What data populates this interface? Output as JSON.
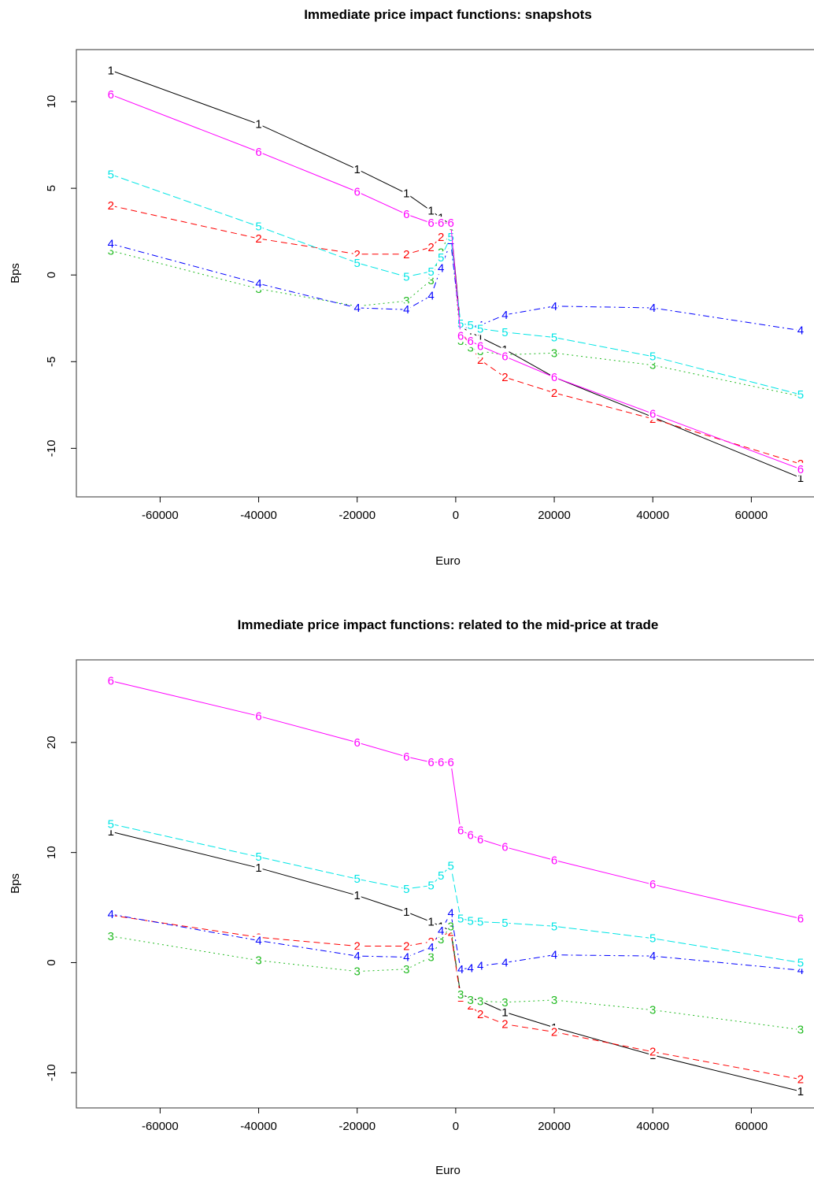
{
  "chart_data": [
    {
      "type": "line",
      "title": "Immediate price impact functions: snapshots",
      "xlabel": "Euro",
      "ylabel": "Bps",
      "xlim": [
        -77000,
        74000
      ],
      "ylim": [
        -12.8,
        13.0
      ],
      "x_ticks": [
        -60000,
        -40000,
        -20000,
        0,
        20000,
        40000,
        60000
      ],
      "x_tick_labels": [
        "-60000",
        "-40000",
        "-20000",
        "0",
        "20000",
        "40000",
        "60000"
      ],
      "y_ticks": [
        -10,
        -5,
        0,
        5,
        10
      ],
      "y_tick_labels": [
        "-10",
        "-5",
        "0",
        "5",
        "10"
      ],
      "grid": false,
      "x": [
        -70000,
        -40000,
        -20000,
        -10000,
        -5000,
        -3000,
        -1000,
        1000,
        3000,
        5000,
        10000,
        20000,
        40000,
        70000
      ],
      "series": [
        {
          "label": "1",
          "color": "#000000",
          "dash": "",
          "values": [
            11.8,
            8.7,
            6.1,
            4.7,
            3.7,
            3.3,
            2.9,
            -3.0,
            -3.3,
            -3.6,
            -4.3,
            -5.9,
            -8.2,
            -11.7
          ]
        },
        {
          "label": "2",
          "color": "#ff0000",
          "dash": "8,5",
          "values": [
            4.0,
            2.1,
            1.2,
            1.2,
            1.6,
            2.2,
            2.6,
            -3.2,
            -4.1,
            -4.9,
            -5.9,
            -6.8,
            -8.3,
            -10.9
          ]
        },
        {
          "label": "3",
          "color": "#22bb22",
          "dash": "2,4",
          "values": [
            1.4,
            -0.8,
            -1.8,
            -1.5,
            -0.3,
            1.3,
            2.6,
            -3.8,
            -4.2,
            -4.4,
            -4.6,
            -4.5,
            -5.2,
            -7.0
          ]
        },
        {
          "label": "4",
          "color": "#0000ff",
          "dash": "8,4,2,4",
          "values": [
            1.8,
            -0.5,
            -1.9,
            -2.0,
            -1.2,
            0.4,
            1.9,
            -3.1,
            -3.0,
            -2.9,
            -2.3,
            -1.8,
            -1.9,
            -3.2
          ]
        },
        {
          "label": "5",
          "color": "#00e5e5",
          "dash": "10,4",
          "values": [
            5.8,
            2.8,
            0.7,
            -0.1,
            0.2,
            1.0,
            2.2,
            -2.8,
            -2.9,
            -3.1,
            -3.3,
            -3.6,
            -4.7,
            -6.9
          ]
        },
        {
          "label": "6",
          "color": "#ff00ff",
          "dash": "",
          "values": [
            10.4,
            7.1,
            4.8,
            3.5,
            3.0,
            3.0,
            3.0,
            -3.5,
            -3.8,
            -4.1,
            -4.7,
            -5.9,
            -8.0,
            -11.2
          ]
        }
      ]
    },
    {
      "type": "line",
      "title": "Immediate price impact functions: related to the mid-price at trade",
      "xlabel": "Euro",
      "ylabel": "Bps",
      "xlim": [
        -77000,
        74000
      ],
      "ylim": [
        -13.2,
        27.5
      ],
      "x_ticks": [
        -60000,
        -40000,
        -20000,
        0,
        20000,
        40000,
        60000
      ],
      "x_tick_labels": [
        "-60000",
        "-40000",
        "-20000",
        "0",
        "20000",
        "40000",
        "60000"
      ],
      "y_ticks": [
        -10,
        0,
        10,
        20
      ],
      "y_tick_labels": [
        "-10",
        "0",
        "10",
        "20"
      ],
      "grid": false,
      "x": [
        -70000,
        -40000,
        -20000,
        -10000,
        -5000,
        -3000,
        -1000,
        1000,
        3000,
        5000,
        10000,
        20000,
        40000,
        70000
      ],
      "series": [
        {
          "label": "1",
          "color": "#000000",
          "dash": "",
          "values": [
            11.9,
            8.6,
            6.1,
            4.6,
            3.7,
            3.3,
            2.9,
            -2.9,
            -3.2,
            -3.5,
            -4.5,
            -5.9,
            -8.4,
            -11.7
          ]
        },
        {
          "label": "2",
          "color": "#ff0000",
          "dash": "8,5",
          "values": [
            4.3,
            2.3,
            1.5,
            1.5,
            1.9,
            2.4,
            2.8,
            -3.2,
            -3.9,
            -4.7,
            -5.6,
            -6.3,
            -8.1,
            -10.6
          ]
        },
        {
          "label": "3",
          "color": "#22bb22",
          "dash": "2,4",
          "values": [
            2.4,
            0.2,
            -0.8,
            -0.6,
            0.5,
            2.1,
            3.3,
            -2.9,
            -3.4,
            -3.5,
            -3.6,
            -3.4,
            -4.3,
            -6.1
          ]
        },
        {
          "label": "4",
          "color": "#0000ff",
          "dash": "8,4,2,4",
          "values": [
            4.4,
            2.0,
            0.6,
            0.5,
            1.4,
            2.9,
            4.5,
            -0.6,
            -0.5,
            -0.3,
            0.0,
            0.7,
            0.6,
            -0.7
          ]
        },
        {
          "label": "5",
          "color": "#00e5e5",
          "dash": "10,4",
          "values": [
            12.6,
            9.6,
            7.6,
            6.7,
            7.0,
            7.9,
            8.8,
            4.0,
            3.8,
            3.7,
            3.6,
            3.3,
            2.2,
            0.0
          ]
        },
        {
          "label": "6",
          "color": "#ff00ff",
          "dash": "",
          "values": [
            25.6,
            22.4,
            20.0,
            18.7,
            18.2,
            18.2,
            18.2,
            12.0,
            11.6,
            11.2,
            10.5,
            9.3,
            7.1,
            4.0
          ]
        }
      ]
    }
  ]
}
